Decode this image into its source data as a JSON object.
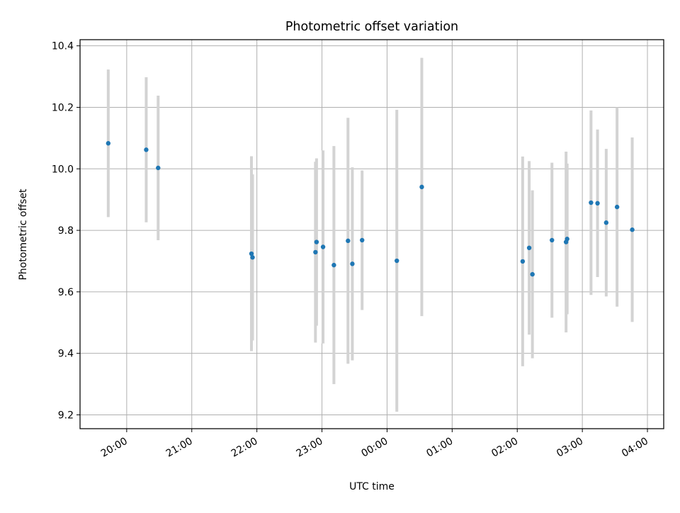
{
  "chart_data": {
    "type": "scatter",
    "title": "Photometric offset variation",
    "xlabel": "UTC time",
    "ylabel": "Photometric offset",
    "x_tick_labels": [
      "20:00",
      "21:00",
      "22:00",
      "23:00",
      "00:00",
      "01:00",
      "02:00",
      "03:00",
      "04:00"
    ],
    "x_ticks": [
      "2024-01-01T20:00",
      "2024-01-01T21:00",
      "2024-01-01T22:00",
      "2024-01-01T23:00",
      "2024-01-02T00:00",
      "2024-01-02T01:00",
      "2024-01-02T02:00",
      "2024-01-02T03:00",
      "2024-01-02T04:00"
    ],
    "y_ticks": [
      9.2,
      9.4,
      9.6,
      9.8,
      10.0,
      10.2,
      10.4
    ],
    "y_tick_labels": [
      "9.2",
      "9.4",
      "9.6",
      "9.8",
      "10.0",
      "10.2",
      "10.4"
    ],
    "xlim": [
      "2024-01-01T19:17",
      "2024-01-02T04:15"
    ],
    "ylim": [
      9.155,
      10.42
    ],
    "grid": true,
    "marker_color": "#1f77b4",
    "errorbar_color": "#d3d3d3",
    "points": [
      {
        "x": "2024-01-01T19:43",
        "y": 10.083,
        "ylow": 9.843,
        "yhigh": 10.323
      },
      {
        "x": "2024-01-01T20:18",
        "y": 10.062,
        "ylow": 9.826,
        "yhigh": 10.298
      },
      {
        "x": "2024-01-01T20:29",
        "y": 10.003,
        "ylow": 9.768,
        "yhigh": 10.238
      },
      {
        "x": "2024-01-01T21:55",
        "y": 9.724,
        "ylow": 9.407,
        "yhigh": 10.041
      },
      {
        "x": "2024-01-01T21:56",
        "y": 9.712,
        "ylow": 9.442,
        "yhigh": 9.982
      },
      {
        "x": "2024-01-01T22:54",
        "y": 9.729,
        "ylow": 9.435,
        "yhigh": 10.023
      },
      {
        "x": "2024-01-01T22:55",
        "y": 9.762,
        "ylow": 9.49,
        "yhigh": 10.034
      },
      {
        "x": "2024-01-01T23:01",
        "y": 9.746,
        "ylow": 9.432,
        "yhigh": 10.06
      },
      {
        "x": "2024-01-01T23:11",
        "y": 9.687,
        "ylow": 9.3,
        "yhigh": 10.074
      },
      {
        "x": "2024-01-01T23:24",
        "y": 9.766,
        "ylow": 9.366,
        "yhigh": 10.166
      },
      {
        "x": "2024-01-01T23:28",
        "y": 9.691,
        "ylow": 9.377,
        "yhigh": 10.005
      },
      {
        "x": "2024-01-01T23:37",
        "y": 9.768,
        "ylow": 9.541,
        "yhigh": 9.995
      },
      {
        "x": "2024-01-02T00:09",
        "y": 9.701,
        "ylow": 9.21,
        "yhigh": 10.192
      },
      {
        "x": "2024-01-02T00:32",
        "y": 9.941,
        "ylow": 9.521,
        "yhigh": 10.361
      },
      {
        "x": "2024-01-02T02:05",
        "y": 9.699,
        "ylow": 9.358,
        "yhigh": 10.04
      },
      {
        "x": "2024-01-02T02:11",
        "y": 9.743,
        "ylow": 9.461,
        "yhigh": 10.025
      },
      {
        "x": "2024-01-02T02:14",
        "y": 9.657,
        "ylow": 9.384,
        "yhigh": 9.93
      },
      {
        "x": "2024-01-02T02:32",
        "y": 9.768,
        "ylow": 9.516,
        "yhigh": 10.02
      },
      {
        "x": "2024-01-02T02:45",
        "y": 9.762,
        "ylow": 9.468,
        "yhigh": 10.056
      },
      {
        "x": "2024-01-02T02:46",
        "y": 9.772,
        "ylow": 9.527,
        "yhigh": 10.017
      },
      {
        "x": "2024-01-02T03:08",
        "y": 9.89,
        "ylow": 9.59,
        "yhigh": 10.19
      },
      {
        "x": "2024-01-02T03:14",
        "y": 9.888,
        "ylow": 9.648,
        "yhigh": 10.128
      },
      {
        "x": "2024-01-02T03:22",
        "y": 9.825,
        "ylow": 9.585,
        "yhigh": 10.065
      },
      {
        "x": "2024-01-02T03:32",
        "y": 9.876,
        "ylow": 9.552,
        "yhigh": 10.2
      },
      {
        "x": "2024-01-02T03:46",
        "y": 9.802,
        "ylow": 9.502,
        "yhigh": 10.102
      }
    ]
  }
}
